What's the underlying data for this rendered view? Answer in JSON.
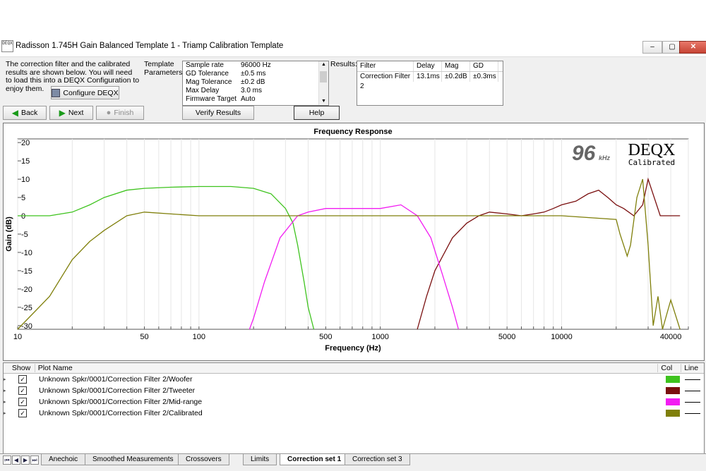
{
  "window": {
    "title": "Radisson 1.745H Gain Balanced Template 1 - Triamp Calibration Template",
    "app_icon": "DEQX",
    "controls": {
      "minimize": "–",
      "maximize": "▢",
      "close": "✕"
    }
  },
  "intro": {
    "text": "The correction filter and the calibrated results are shown below.  You will need to load this into a DEQX Configuration to enjoy them.",
    "configure_label": "Configure DEQX"
  },
  "nav": {
    "back": "Back",
    "next": "Next",
    "finish": "Finish"
  },
  "template": {
    "label": "Template Parameters:",
    "params": [
      {
        "k": "Sample rate",
        "v": "96000 Hz"
      },
      {
        "k": "GD Tolerance",
        "v": "±0.5 ms"
      },
      {
        "k": "Mag Tolerance",
        "v": "±0.2 dB"
      },
      {
        "k": "Max Delay",
        "v": "3.0 ms"
      },
      {
        "k": "Firmware Target",
        "v": "Auto"
      }
    ],
    "verify_label": "Verify Results",
    "help_label": "Help"
  },
  "results": {
    "label": "Results:",
    "headers": [
      "Filter",
      "Delay",
      "Mag",
      "GD"
    ],
    "rows": [
      [
        "Correction Filter 2",
        "13.1ms",
        "±0.2dB",
        "±0.3ms"
      ]
    ]
  },
  "chart_data": {
    "type": "line",
    "title": "Frequency Response",
    "xlabel": "Frequency (Hz)",
    "ylabel": "Gain (dB)",
    "x_scale": "log",
    "xlim": [
      10,
      50000
    ],
    "ylim": [
      -31,
      21
    ],
    "x_ticks": [
      10,
      50,
      100,
      500,
      1000,
      5000,
      10000,
      40000
    ],
    "y_ticks": [
      20,
      15,
      10,
      5,
      0,
      -5,
      -10,
      -15,
      -20,
      -25,
      -30
    ],
    "badge_number": "96",
    "badge_unit": "kHz",
    "brand": "DEQX",
    "brand_sub": "Calibrated",
    "series": [
      {
        "name": "Unknown Spkr/0001/Correction Filter 2/Woofer",
        "color": "#3ec31e",
        "x": [
          10,
          15,
          20,
          25,
          30,
          40,
          50,
          70,
          100,
          150,
          200,
          250,
          300,
          330,
          350,
          380,
          400,
          430
        ],
        "y": [
          0,
          0,
          1,
          3,
          5,
          7,
          7.5,
          7.8,
          8,
          8,
          7.5,
          6,
          2,
          -2,
          -8,
          -18,
          -25,
          -31
        ]
      },
      {
        "name": "Unknown Spkr/0001/Correction Filter 2/Tweeter",
        "color": "#7a0f0f",
        "x": [
          1600,
          1800,
          2000,
          2500,
          3000,
          3500,
          4000,
          5000,
          6000,
          7000,
          8000,
          9000,
          10000,
          12000,
          14000,
          16000,
          18000,
          20000,
          22000,
          25000,
          28000,
          30000,
          35000,
          40000,
          45000
        ],
        "y": [
          -31,
          -22,
          -15,
          -6,
          -2,
          0,
          1,
          0.5,
          0,
          0.5,
          1,
          2,
          3,
          4,
          6,
          7,
          5,
          3,
          2,
          0,
          3,
          10,
          0,
          0,
          0
        ]
      },
      {
        "name": "Unknown Spkr/0001/Correction Filter 2/Mid-range",
        "color": "#f21cf2",
        "x": [
          190,
          200,
          230,
          280,
          350,
          400,
          500,
          700,
          1000,
          1300,
          1600,
          1900,
          2200,
          2500,
          2700
        ],
        "y": [
          -31,
          -28,
          -18,
          -6,
          0,
          1,
          2,
          2,
          2,
          3,
          0,
          -6,
          -16,
          -25,
          -31
        ]
      },
      {
        "name": "Unknown Spkr/0001/Correction Filter 2/Calibrated",
        "color": "#7f7f0a",
        "x": [
          10,
          15,
          20,
          25,
          30,
          40,
          50,
          70,
          100,
          200,
          500,
          1000,
          2000,
          5000,
          10000,
          20000,
          21000,
          23000,
          24000,
          26000,
          28000,
          30000,
          32000,
          34000,
          36000,
          40000,
          45000
        ],
        "y": [
          -31,
          -22,
          -12,
          -7,
          -4,
          0,
          1,
          0.5,
          0,
          0,
          0,
          0,
          0,
          0,
          0,
          -1,
          -5,
          -11,
          -8,
          5,
          10,
          -8,
          -30,
          -22,
          -31,
          -23,
          -31
        ]
      }
    ]
  },
  "legend": {
    "headers": {
      "show": "Show",
      "name": "Plot Name",
      "col": "Col",
      "line": "Line"
    },
    "rows": [
      {
        "name": "Unknown Spkr/0001/Correction Filter 2/Woofer",
        "color": "#3ec31e"
      },
      {
        "name": "Unknown Spkr/0001/Correction Filter 2/Tweeter",
        "color": "#7a0f0f"
      },
      {
        "name": "Unknown Spkr/0001/Correction Filter 2/Mid-range",
        "color": "#f21cf2"
      },
      {
        "name": "Unknown Spkr/0001/Correction Filter 2/Calibrated",
        "color": "#7f7f0a"
      }
    ]
  },
  "tabs": [
    "Anechoic",
    "Smoothed Measurements",
    "Crossovers",
    "Limits",
    "Correction set 1",
    "Correction set 3"
  ],
  "active_tab": "Correction set 1"
}
